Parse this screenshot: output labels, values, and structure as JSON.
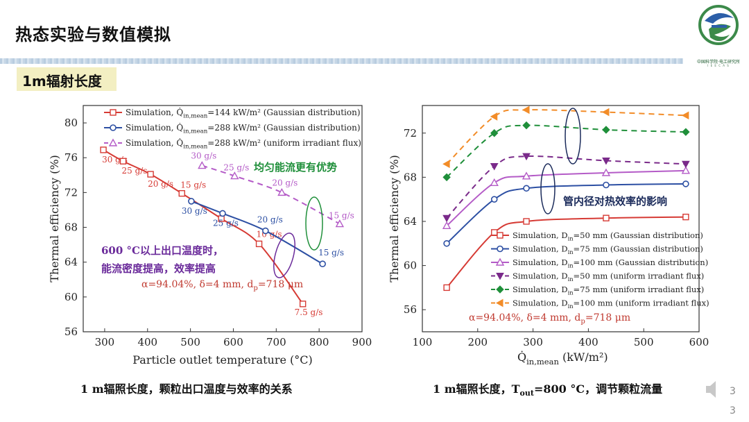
{
  "header": {
    "title": "热态实验与数值模拟",
    "subtitle": "1m辐射长度",
    "logo_caption": "中国科学院·电工研究所",
    "logo_subcaption": "I E E C A S"
  },
  "captions": {
    "left": "1 m辐照长度，颗粒出口温度与效率的关系",
    "right_prefix": "1 m辐照长度，T",
    "right_sub": "out",
    "right_suffix": "=800 °C，调节颗粒流量"
  },
  "page": {
    "number_top": "3",
    "number_bottom": "3"
  },
  "colors": {
    "red": "#d63a34",
    "blue": "#2c4fa3",
    "purple": "#b45bc7",
    "green": "#1f8f3a",
    "orange": "#f28c28",
    "navy": "#1a2a5a"
  },
  "chart_data": [
    {
      "type": "line",
      "xlabel": "Particle outlet temperature (°C)",
      "ylabel": "Thermal efficiency (%)",
      "xlim": [
        250,
        900
      ],
      "ylim": [
        56,
        82
      ],
      "xticks": [
        300,
        400,
        500,
        600,
        700,
        800,
        900
      ],
      "yticks": [
        56,
        60,
        64,
        68,
        72,
        76,
        80
      ],
      "legend_position": "top",
      "series": [
        {
          "name": "Simulation, Q̇in,mean=144 kW/m² (Gaussian distribution)",
          "legend_main": "Simulation, Q̇",
          "legend_sub": "in,mean",
          "legend_rest": "=144 kW/m² (Gaussian distribution)",
          "color": "#d63a34",
          "marker": "square",
          "dash": false,
          "x": [
            297,
            343,
            407,
            480,
            572,
            660,
            762
          ],
          "y": [
            76.9,
            75.6,
            74.1,
            71.9,
            69.0,
            66.1,
            59.2
          ],
          "labels": [
            "30 g/s",
            "25 g/s",
            "20 g/s",
            "15 g/s",
            "",
            "10 g/s",
            "7.5 g/s"
          ]
        },
        {
          "name": "Simulation, Q̇in,mean=288 kW/m² (Gaussian distribution)",
          "legend_main": "Simulation, Q̇",
          "legend_sub": "in,mean",
          "legend_rest": "=288 kW/m² (Gaussian distribution)",
          "color": "#2c4fa3",
          "marker": "circle",
          "dash": false,
          "x": [
            502,
            575,
            675,
            808
          ],
          "y": [
            71.0,
            69.6,
            67.6,
            63.8
          ],
          "labels": [
            "30 g/s",
            "25 g/s",
            "20 g/s",
            "15 g/s"
          ]
        },
        {
          "name": "Simulation, Q̇in,mean=288 kW/m² (uniform irradiant flux)",
          "legend_main": "Simulation, Q̇",
          "legend_sub": "in,mean",
          "legend_rest": "=288 kW/m² (uniform irradiant flux)",
          "color": "#b45bc7",
          "marker": "triangle",
          "dash": true,
          "x": [
            527,
            603,
            713,
            848
          ],
          "y": [
            75.1,
            73.9,
            72.0,
            68.4
          ],
          "labels": [
            "30 g/s",
            "25 g/s",
            "20 g/s",
            "15 g/s"
          ]
        }
      ],
      "annotations": {
        "green_note": "均匀能流更有优势",
        "purple_note_1": "600 °C以上出口温度时，",
        "purple_note_2": "能流密度提高，效率提高",
        "params_prefix": "α=94.04%, δ=4 mm, d",
        "params_sub": "p",
        "params_suffix": "=718 μm"
      }
    },
    {
      "type": "line",
      "xlabel_main": "Q̇",
      "xlabel_sub": "in,mean",
      "xlabel_rest": " (kW/m²)",
      "ylabel": "Thermal efficiency (%)",
      "xlim": [
        100,
        600
      ],
      "ylim": [
        54,
        74.5
      ],
      "xticks": [
        100,
        200,
        300,
        400,
        500,
        600
      ],
      "yticks": [
        56,
        60,
        64,
        68,
        72
      ],
      "legend_position": "bottom-right",
      "x": [
        144,
        230,
        288,
        432,
        576
      ],
      "series": [
        {
          "name": "Simulation, Din=50 mm (Gaussian distribution)",
          "legend_main": "Simulation, D",
          "legend_sub": "in",
          "legend_rest": "=50 mm (Gaussian distribution)",
          "color": "#d63a34",
          "marker": "square",
          "dash": false,
          "values": [
            58.0,
            63.0,
            64.0,
            64.3,
            64.4
          ]
        },
        {
          "name": "Simulation, Din=75 mm (Gaussian distribution)",
          "legend_main": "Simulation, D",
          "legend_sub": "in",
          "legend_rest": "=75 mm (Gaussian distribution)",
          "color": "#2c4fa3",
          "marker": "circle",
          "dash": false,
          "values": [
            62.0,
            66.0,
            67.0,
            67.3,
            67.4
          ]
        },
        {
          "name": "Simulation, Din=100 mm (Gaussian distribution)",
          "legend_main": "Simulation, D",
          "legend_sub": "in",
          "legend_rest": "=100 mm (Gaussian distribution)",
          "color": "#b45bc7",
          "marker": "triangle",
          "dash": false,
          "values": [
            63.6,
            67.5,
            68.1,
            68.4,
            68.6
          ]
        },
        {
          "name": "Simulation, Din=50 mm (uniform irradiant flux)",
          "legend_main": "Simulation, D",
          "legend_sub": "in",
          "legend_rest": "=50 mm (uniform irradiant flux)",
          "color": "#7a2a8a",
          "marker": "triangle-down",
          "dash": true,
          "values": [
            64.3,
            69.0,
            69.9,
            69.5,
            69.2
          ]
        },
        {
          "name": "Simulation, Din=75 mm (uniform irradiant flux)",
          "legend_main": "Simulation, D",
          "legend_sub": "in",
          "legend_rest": "=75 mm (uniform irradiant flux)",
          "color": "#1f8f3a",
          "marker": "diamond",
          "dash": true,
          "values": [
            68.0,
            72.0,
            72.7,
            72.3,
            72.1
          ]
        },
        {
          "name": "Simulation, Din=100 mm (uniform irradiant flux)",
          "legend_main": "Simulation, D",
          "legend_sub": "in",
          "legend_rest": "=100 mm (uniform irradiant flux)",
          "color": "#f28c28",
          "marker": "triangle-left",
          "dash": true,
          "values": [
            69.2,
            73.5,
            74.1,
            73.9,
            73.6
          ]
        }
      ],
      "annotations": {
        "navy_note": "管内径对热效率的影响",
        "params_prefix": "α=94.04%, δ=4 mm, d",
        "params_sub": "p",
        "params_suffix": "=718 μm"
      }
    }
  ]
}
